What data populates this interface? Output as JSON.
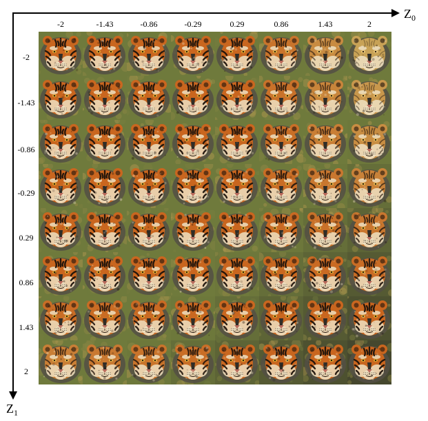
{
  "axes": {
    "z0": {
      "symbol": "Z",
      "subscript": "0"
    },
    "z1": {
      "symbol": "Z",
      "subscript": "1"
    }
  },
  "column_ticks": [
    "-2",
    "-1.43",
    "-0.86",
    "-0.29",
    "0.29",
    "0.86",
    "1.43",
    "2"
  ],
  "row_ticks": [
    "-2",
    "-1.43",
    "-0.86",
    "-0.29",
    "0.29",
    "0.86",
    "1.43",
    "2"
  ],
  "z_values": [
    -2,
    -1.43,
    -0.86,
    -0.29,
    0.29,
    0.86,
    1.43,
    2
  ],
  "grid_rows": 8,
  "grid_cols": 8,
  "cell_subject": "tiger-face",
  "colors": {
    "tiger_orange": "#c9661f",
    "lion_gold": "#c8a256",
    "fur_light": "#efe1c2",
    "stripe_dark": "#1e130c",
    "bg_green": "#6f7a3c",
    "bg_dark": "#3a3a2a"
  }
}
